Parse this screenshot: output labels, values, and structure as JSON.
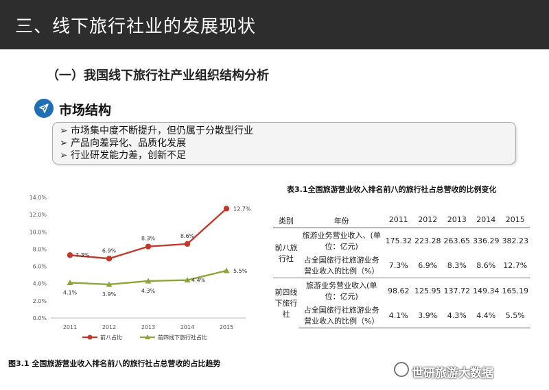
{
  "header": {
    "title": "三、线下旅行社业的发展现状"
  },
  "subtitle": "（一）我国线下旅行社产业组织结构分析",
  "section": {
    "heading": "市场结构",
    "icon": "paper-plane-icon"
  },
  "bullets": [
    "市场集中度不断提升，但仍属于分散型行业",
    "产品向差异化、品质化发展",
    "行业研发能力差，创新不足"
  ],
  "chart_data": {
    "type": "line",
    "x": [
      "2011",
      "2012",
      "2013",
      "2014",
      "2015"
    ],
    "ylim": [
      0,
      14
    ],
    "y_ticks": [
      "0.0%",
      "2.0%",
      "4.0%",
      "6.0%",
      "8.0%",
      "10.0%",
      "12.0%",
      "14.0%"
    ],
    "series": [
      {
        "name": "前八占比",
        "values": [
          7.3,
          6.9,
          8.3,
          8.6,
          12.7
        ],
        "labels": [
          "7.3%",
          "6.9%",
          "8.3%",
          "8.6%",
          "12.7%"
        ],
        "color": "#c0392b"
      },
      {
        "name": "前四线下旅行社占比",
        "values": [
          4.1,
          3.9,
          4.3,
          4.4,
          5.5
        ],
        "labels": [
          "4.1%",
          "3.9%",
          "4.3%",
          "4.4%",
          "5.5%"
        ],
        "color": "#8aa53a"
      }
    ],
    "grid": false,
    "legend": "bottom"
  },
  "chart_caption": "图3.1 全国旅游营业收入排名前八的旅行社占总营收的占比趋势",
  "table": {
    "caption": "表3.1全国旅游营业收入排名前八的旅行社占总营收的比例变化",
    "headers": [
      "类别",
      "年份",
      "2011",
      "2012",
      "2013",
      "2014",
      "2015"
    ],
    "groups": [
      {
        "category": "前八旅行社",
        "rows": [
          {
            "item": "旅游业务营业收入、(单位：亿元)",
            "values": [
              "175.32",
              "223.28",
              "263.65",
              "336.29",
              "382.23"
            ]
          },
          {
            "item": "占全国旅行社旅游业务营业收入的比例（%）",
            "values": [
              "7.3%",
              "6.9%",
              "8.3%",
              "8.6%",
              "12.7%"
            ]
          }
        ]
      },
      {
        "category": "前四线下旅行社",
        "rows": [
          {
            "item": "旅游业务营业收入(单位：亿元)",
            "values": [
              "98.62",
              "125.95",
              "137.72",
              "149.34",
              "165.19"
            ]
          },
          {
            "item": "占全国旅行社旅游业务营业收入的比例（%）",
            "values": [
              "4.1%",
              "3.9%",
              "4.3%",
              "4.4%",
              "5.5%"
            ]
          }
        ]
      }
    ]
  },
  "watermark": "世研旅游大数据"
}
